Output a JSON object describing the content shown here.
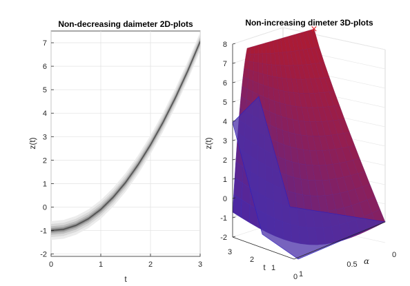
{
  "chart_data": [
    {
      "type": "area",
      "title": "Non-decreasing daimeter 2D-plots",
      "xlabel": "t",
      "ylabel": "z(t)",
      "xlim": [
        0,
        3
      ],
      "ylim": [
        -2.1,
        7.5
      ],
      "xticks": [
        "0",
        "1",
        "2",
        "3"
      ],
      "yticks": [
        "-2",
        "-1",
        "0",
        "1",
        "2",
        "3",
        "4",
        "5",
        "6",
        "7"
      ],
      "grid": true,
      "center_curve": {
        "x": [
          0,
          0.25,
          0.5,
          0.75,
          1,
          1.25,
          1.5,
          1.75,
          2,
          2.25,
          2.5,
          2.75,
          3
        ],
        "y": [
          -1,
          -0.95,
          -0.78,
          -0.5,
          -0.1,
          0.42,
          1.05,
          1.8,
          2.65,
          3.6,
          4.65,
          5.8,
          7.05
        ]
      },
      "band_halfwidths": [
        0.4,
        0.28,
        0.18,
        0.1,
        0.04
      ],
      "band_colors": [
        "#ececec",
        "#d9d9d9",
        "#bdbdbd",
        "#9a9a9a",
        "#6e6e6e"
      ]
    },
    {
      "type": "surface",
      "title": "Non-increasing dimeter 3D-plots",
      "zlabel": "z(t)",
      "tlabel": "t",
      "alphalabel": "α",
      "zlim": [
        -2,
        8
      ],
      "zticks": [
        "-2",
        "-1",
        "0",
        "1",
        "2",
        "3",
        "4",
        "5",
        "6",
        "7",
        "8"
      ],
      "tticks": [
        "3",
        "2",
        "1",
        "0"
      ],
      "alphaticks": [
        "1",
        "0.5",
        "0"
      ],
      "grid": true,
      "surface_top_color": "#c0181c",
      "surface_bottom_color": "#3a2ab8",
      "marker_color": "#e0202a"
    }
  ]
}
